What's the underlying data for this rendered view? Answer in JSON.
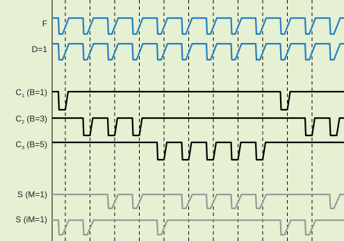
{
  "colors": {
    "background": "#e6f0d2",
    "axis": "#000000",
    "clock": "#1f7fc4",
    "counter": "#000000",
    "output": "#999999",
    "grid_dash": "#000000"
  },
  "grid": {
    "dashed_vertical_lines": 11
  },
  "signals": [
    {
      "id": "F",
      "label": "F",
      "subscript": "",
      "suffix": "",
      "color_key": "clock",
      "pulses_at_periods": [
        0,
        1,
        2,
        3,
        4,
        5,
        6,
        7,
        8,
        9,
        10,
        11
      ]
    },
    {
      "id": "D1",
      "label": "D=1",
      "subscript": "",
      "suffix": "",
      "color_key": "clock",
      "pulses_at_periods": [
        0,
        1,
        2,
        3,
        4,
        5,
        6,
        7,
        8,
        9,
        10,
        11
      ]
    },
    {
      "id": "C1",
      "label": "C",
      "subscript": "1",
      "suffix": " (B=1)",
      "color_key": "counter",
      "pulses_at_periods": [
        0,
        9
      ]
    },
    {
      "id": "C2",
      "label": "C",
      "subscript": "2",
      "suffix": " (B=3)",
      "color_key": "counter",
      "pulses_at_periods": [
        1,
        2,
        3,
        10,
        11
      ]
    },
    {
      "id": "C3",
      "label": "C",
      "subscript": "3",
      "suffix": " (B=5)",
      "color_key": "counter",
      "pulses_at_periods": [
        4,
        5,
        6,
        7,
        8
      ]
    },
    {
      "id": "SM1",
      "label": "S (M=1)",
      "subscript": "",
      "suffix": "",
      "color_key": "output",
      "pulses_at_periods": [
        2,
        3,
        5,
        6,
        7,
        8,
        11
      ]
    },
    {
      "id": "SiM1",
      "label": "S (iM=1)",
      "subscript": "",
      "suffix": "",
      "color_key": "output",
      "pulses_at_periods": [
        0,
        1,
        4,
        9,
        10
      ]
    }
  ]
}
